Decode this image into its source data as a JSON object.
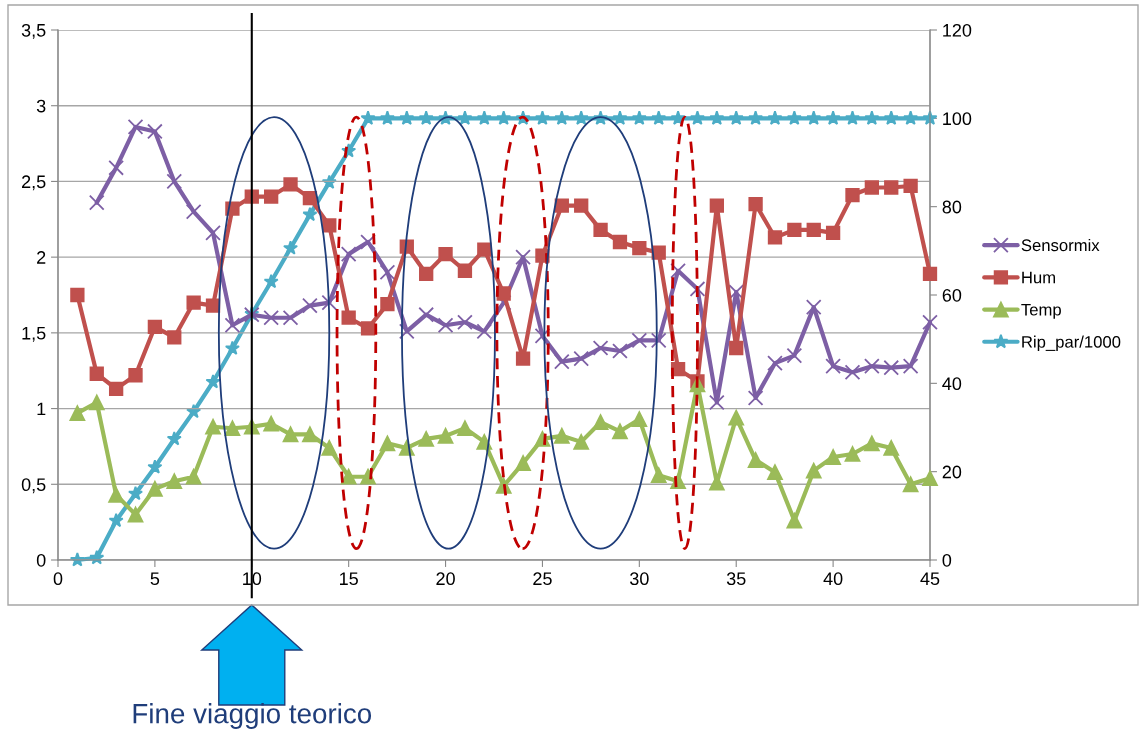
{
  "chart_data": {
    "type": "line",
    "x": [
      1,
      2,
      3,
      4,
      5,
      6,
      7,
      8,
      9,
      10,
      11,
      12,
      13,
      14,
      15,
      16,
      17,
      18,
      19,
      20,
      21,
      22,
      23,
      24,
      25,
      26,
      27,
      28,
      29,
      30,
      31,
      32,
      33,
      34,
      35,
      36,
      37,
      38,
      39,
      40,
      41,
      42,
      43,
      44,
      45
    ],
    "series": [
      {
        "name": "Sensormix",
        "color": "#7d5fa5",
        "marker": "cross",
        "values": [
          null,
          2.36,
          2.59,
          2.86,
          2.83,
          2.5,
          2.3,
          2.16,
          1.55,
          1.62,
          1.6,
          1.6,
          1.68,
          1.7,
          2.02,
          2.1,
          1.9,
          1.51,
          1.62,
          1.55,
          1.57,
          1.51,
          1.7,
          2.0,
          1.48,
          1.31,
          1.33,
          1.4,
          1.38,
          1.45,
          1.45,
          1.91,
          1.79,
          1.04,
          1.77,
          1.07,
          1.3,
          1.35,
          1.67,
          1.28,
          1.24,
          1.28,
          1.27,
          1.28,
          1.57
        ]
      },
      {
        "name": "Hum",
        "color": "#c0504d",
        "marker": "square",
        "values": [
          1.75,
          1.23,
          1.13,
          1.22,
          1.54,
          1.47,
          1.7,
          1.68,
          2.32,
          2.4,
          2.4,
          2.48,
          2.39,
          2.21,
          1.6,
          1.53,
          1.69,
          2.07,
          1.89,
          2.02,
          1.91,
          2.05,
          1.76,
          1.33,
          2.01,
          2.34,
          2.34,
          2.18,
          2.1,
          2.06,
          2.03,
          1.26,
          1.18,
          2.34,
          1.4,
          2.35,
          2.13,
          2.18,
          2.18,
          2.16,
          2.41,
          2.46,
          2.46,
          2.47,
          1.89
        ]
      },
      {
        "name": "Temp",
        "color": "#9bbb59",
        "marker": "triangle",
        "values": [
          0.97,
          1.04,
          0.43,
          0.3,
          0.47,
          0.52,
          0.55,
          0.88,
          0.87,
          0.88,
          0.9,
          0.83,
          0.83,
          0.74,
          0.55,
          0.55,
          0.77,
          0.74,
          0.8,
          0.82,
          0.87,
          0.78,
          0.49,
          0.64,
          0.8,
          0.82,
          0.78,
          0.91,
          0.85,
          0.93,
          0.56,
          0.52,
          1.16,
          0.51,
          0.94,
          0.66,
          0.58,
          0.26,
          0.59,
          0.68,
          0.7,
          0.77,
          0.74,
          0.5,
          0.54
        ]
      },
      {
        "name": "Rip_par/1000",
        "color": "#4bacc6",
        "marker": "star",
        "axis": "y2",
        "values": [
          0,
          0.5,
          8.9,
          15,
          21,
          27.4,
          33.6,
          40.3,
          47.9,
          55.7,
          63,
          70.6,
          78.2,
          85.5,
          92.6,
          100,
          100,
          100,
          100,
          100,
          100,
          100,
          100,
          100,
          100,
          100,
          100,
          100,
          100,
          100,
          100,
          100,
          100,
          100,
          100,
          100,
          100,
          100,
          100,
          100,
          100,
          100,
          100,
          100,
          100
        ]
      }
    ],
    "xlim": [
      0,
      45
    ],
    "xticks": [
      0,
      5,
      10,
      15,
      20,
      25,
      30,
      35,
      40,
      45
    ],
    "ylim": [
      0,
      3.5
    ],
    "yticks": [
      0,
      {
        "value": 0.5,
        "label": "0,5"
      },
      1,
      {
        "value": 1.5,
        "label": "1,5"
      },
      2,
      {
        "value": 2.5,
        "label": "2,5"
      },
      3,
      {
        "value": 3.5,
        "label": "3,5"
      }
    ],
    "y2lim": [
      0,
      120
    ],
    "y2ticks": [
      0,
      20,
      40,
      60,
      80,
      100,
      120
    ],
    "grid": "y",
    "legend": "right",
    "ref_lines": [
      {
        "axis": "x",
        "value": 10,
        "color": "#000000"
      }
    ],
    "annotations": [
      "Fine viaggio teorico"
    ]
  }
}
